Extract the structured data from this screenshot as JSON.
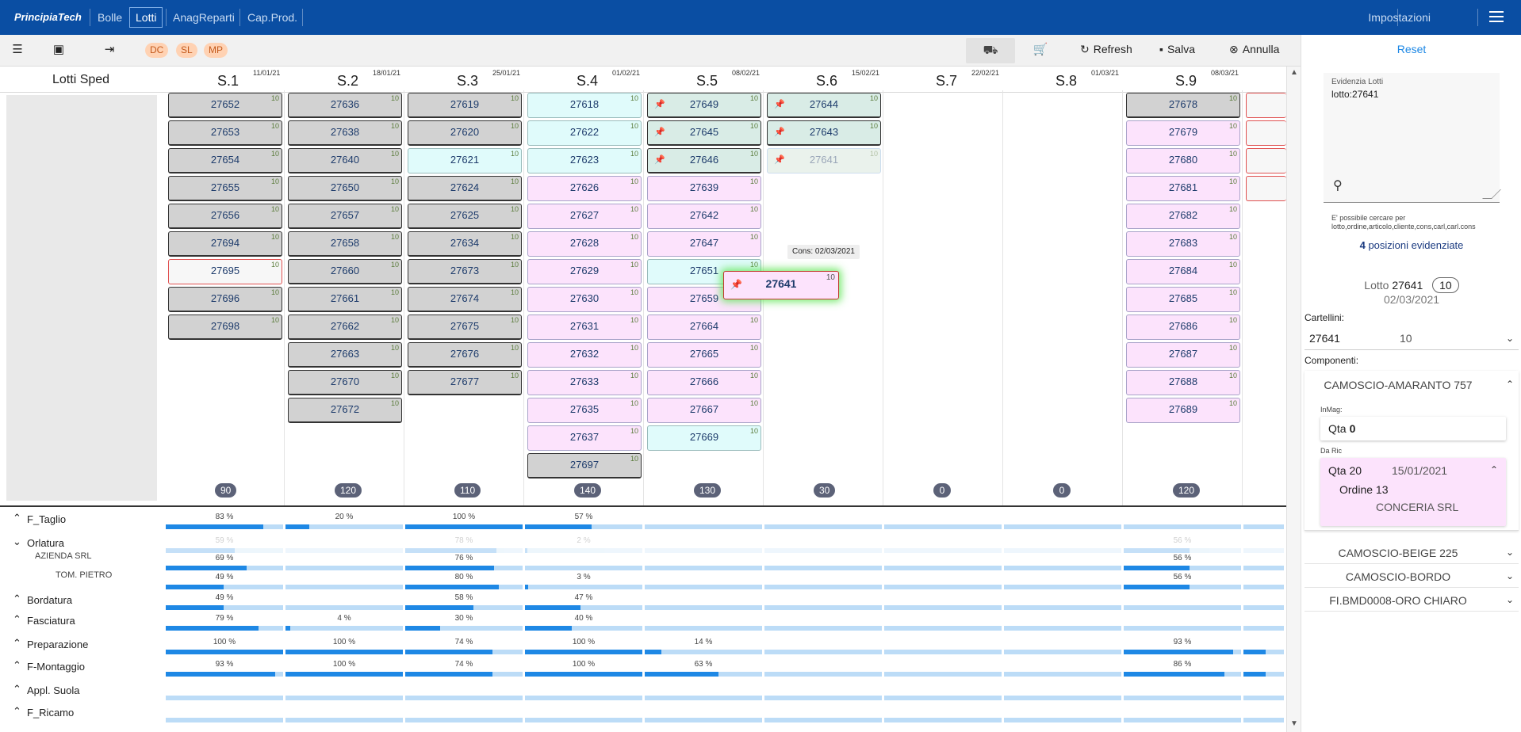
{
  "topbar": {
    "brand": "PrincipiaTech",
    "nav": [
      "Bolle",
      "Lotti",
      "AnagReparti",
      "Cap.Prod."
    ],
    "active": "Lotti",
    "settings": "Impostazioni"
  },
  "toolbar": {
    "chips": [
      "DC",
      "SL",
      "MP"
    ],
    "refresh": "Refresh",
    "save": "Salva",
    "cancel": "Annulla"
  },
  "board": {
    "left_title": "Lotti Sped",
    "weeks": [
      {
        "label": "S.1",
        "date": "11/01/21",
        "total": "90"
      },
      {
        "label": "S.2",
        "date": "18/01/21",
        "total": "120"
      },
      {
        "label": "S.3",
        "date": "25/01/21",
        "total": "110"
      },
      {
        "label": "S.4",
        "date": "01/02/21",
        "total": "140"
      },
      {
        "label": "S.5",
        "date": "08/02/21",
        "total": "130"
      },
      {
        "label": "S.6",
        "date": "15/02/21",
        "total": "30"
      },
      {
        "label": "S.7",
        "date": "22/02/21",
        "total": "0"
      },
      {
        "label": "S.8",
        "date": "01/03/21",
        "total": "0"
      },
      {
        "label": "S.9",
        "date": "08/03/21",
        "total": "120"
      }
    ],
    "columns": [
      [
        [
          "27652",
          "grey"
        ],
        [
          "27653",
          "grey"
        ],
        [
          "27654",
          "grey"
        ],
        [
          "27655",
          "grey"
        ],
        [
          "27656",
          "grey"
        ],
        [
          "27694",
          "grey"
        ],
        [
          "27695",
          "red"
        ],
        [
          "27696",
          "grey"
        ],
        [
          "27698",
          "grey"
        ]
      ],
      [
        [
          "27636",
          "grey"
        ],
        [
          "27638",
          "grey"
        ],
        [
          "27640",
          "grey"
        ],
        [
          "27650",
          "grey"
        ],
        [
          "27657",
          "grey"
        ],
        [
          "27658",
          "grey"
        ],
        [
          "27660",
          "grey"
        ],
        [
          "27661",
          "grey"
        ],
        [
          "27662",
          "grey"
        ],
        [
          "27663",
          "grey"
        ],
        [
          "27670",
          "grey"
        ],
        [
          "27672",
          "grey"
        ]
      ],
      [
        [
          "27619",
          "grey"
        ],
        [
          "27620",
          "grey"
        ],
        [
          "27621",
          "cyan"
        ],
        [
          "27624",
          "grey"
        ],
        [
          "27625",
          "grey"
        ],
        [
          "27634",
          "grey"
        ],
        [
          "27673",
          "grey"
        ],
        [
          "27674",
          "grey"
        ],
        [
          "27675",
          "grey"
        ],
        [
          "27676",
          "grey"
        ],
        [
          "27677",
          "grey"
        ]
      ],
      [
        [
          "27618",
          "cyan"
        ],
        [
          "27622",
          "cyan"
        ],
        [
          "27623",
          "cyan"
        ],
        [
          "27626",
          "pink"
        ],
        [
          "27627",
          "pink"
        ],
        [
          "27628",
          "pink"
        ],
        [
          "27629",
          "pink"
        ],
        [
          "27630",
          "pink"
        ],
        [
          "27631",
          "pink"
        ],
        [
          "27632",
          "pink"
        ],
        [
          "27633",
          "pink"
        ],
        [
          "27635",
          "pink"
        ],
        [
          "27637",
          "pink"
        ],
        [
          "27697",
          "grey"
        ]
      ],
      [
        [
          "27649",
          "teal",
          true
        ],
        [
          "27645",
          "teal",
          true
        ],
        [
          "27646",
          "teal",
          true
        ],
        [
          "27639",
          "pink"
        ],
        [
          "27642",
          "pink"
        ],
        [
          "27647",
          "pink"
        ],
        [
          "27651",
          "cyan"
        ],
        [
          "27659",
          "pink"
        ],
        [
          "27664",
          "pink"
        ],
        [
          "27665",
          "pink"
        ],
        [
          "27666",
          "pink"
        ],
        [
          "27667",
          "pink"
        ],
        [
          "27669",
          "cyan"
        ]
      ],
      [
        [
          "27644",
          "teal",
          true
        ],
        [
          "27643",
          "teal",
          true
        ],
        [
          "27641",
          "ghost",
          true
        ]
      ],
      [],
      [],
      [
        [
          "27678",
          "grey"
        ],
        [
          "27679",
          "pink"
        ],
        [
          "27680",
          "pink"
        ],
        [
          "27681",
          "pink"
        ],
        [
          "27682",
          "pink"
        ],
        [
          "27683",
          "pink"
        ],
        [
          "27684",
          "pink"
        ],
        [
          "27685",
          "pink"
        ],
        [
          "27686",
          "pink"
        ],
        [
          "27687",
          "pink"
        ],
        [
          "27688",
          "pink"
        ],
        [
          "27689",
          "pink"
        ]
      ]
    ],
    "lot_qty": "10",
    "drag_lot": {
      "id": "27641",
      "qty": "10"
    },
    "tooltip": "Cons: 02/03/2021"
  },
  "production": {
    "rows": [
      {
        "label": "F_Taglio",
        "values": [
          83,
          20,
          100,
          57,
          null,
          null,
          null,
          null,
          null
        ]
      },
      {
        "label": "Orlatura",
        "values": [
          59,
          null,
          78,
          2,
          null,
          null,
          null,
          null,
          56
        ],
        "faint": true
      },
      {
        "label": "AZIENDA SRL",
        "values": [
          69,
          null,
          76,
          null,
          null,
          null,
          null,
          null,
          56
        ],
        "sub": 1
      },
      {
        "label": "TOM. PIETRO",
        "values": [
          49,
          null,
          80,
          3,
          null,
          null,
          null,
          null,
          56
        ],
        "sub": 2
      },
      {
        "label": "Bordatura",
        "values": [
          49,
          null,
          58,
          47,
          null,
          null,
          null,
          null,
          null
        ]
      },
      {
        "label": "Fasciatura",
        "values": [
          79,
          4,
          30,
          40,
          null,
          null,
          null,
          null,
          null
        ]
      },
      {
        "label": "Preparazione",
        "values": [
          100,
          100,
          74,
          100,
          14,
          null,
          null,
          null,
          93
        ]
      },
      {
        "label": "F-Montaggio",
        "values": [
          93,
          100,
          74,
          100,
          63,
          null,
          null,
          null,
          86
        ]
      },
      {
        "label": "Appl. Suola",
        "values": [
          null,
          null,
          null,
          null,
          null,
          null,
          null,
          null,
          null
        ]
      },
      {
        "label": "F_Ricamo",
        "values": [
          null,
          null,
          null,
          null,
          null,
          null,
          null,
          null,
          null
        ]
      }
    ]
  },
  "right": {
    "reset": "Reset",
    "search_label": "Evidenzia Lotti",
    "search_value": "lotto:27641",
    "hint": "E' possibile cercare per lotto,ordine,articolo,cliente,cons,carl,carl.cons",
    "evid_count": "4",
    "evid_text": "posizioni evidenziate",
    "lotto_label": "Lotto",
    "lotto_num": "27641",
    "lotto_qty": "10",
    "lotto_date": "02/03/2021",
    "cartellini_label": "Cartellini:",
    "cart_a": "27641",
    "cart_b": "10",
    "componenti_label": "Componenti:",
    "comp_main": "CAMOSCIO-AMARANTO 757",
    "inmag_label": "InMag:",
    "inmag_qta": "Qta",
    "inmag_val": "0",
    "dari_label": "Da Ric",
    "dari_qta": "Qta 20",
    "dari_date": "15/01/2021",
    "dari_order": "Ordine 13",
    "dari_company": "CONCERIA SRL",
    "comp_others": [
      "CAMOSCIO-BEIGE 225",
      "CAMOSCIO-BORDO",
      "FI.BMD0008-ORO CHIARO"
    ]
  }
}
